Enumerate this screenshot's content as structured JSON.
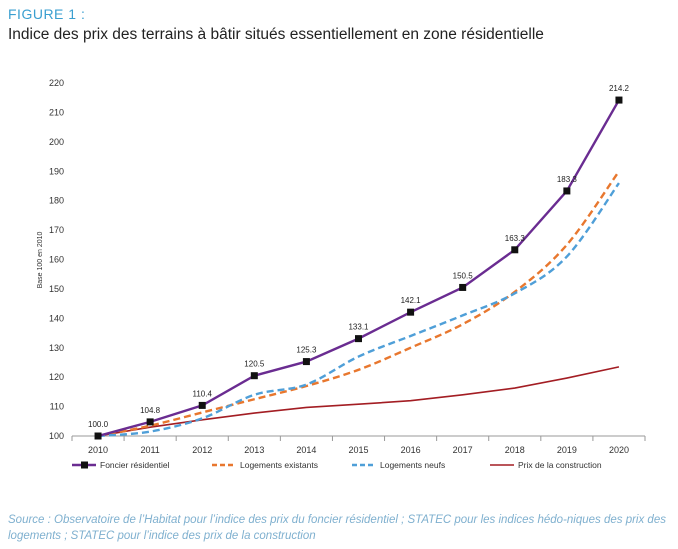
{
  "figure": {
    "label": "FIGURE 1 :",
    "title": "Indice des prix des terrains à bâtir situés essentiellement en zone résidentielle",
    "source": "Source : Observatoire de l’Habitat pour l’indice des prix du foncier résidentiel ; STATEC pour les indices hédo-niques des prix des logements ; STATEC pour l’indice des prix de la construction"
  },
  "chart_data": {
    "type": "line",
    "x": [
      2010,
      2011,
      2012,
      2013,
      2014,
      2015,
      2016,
      2017,
      2018,
      2019,
      2020
    ],
    "ylabel": "Base 100 en 2010",
    "xlabel": "",
    "ylim": [
      100,
      220
    ],
    "yticks": [
      100,
      110,
      120,
      130,
      140,
      150,
      160,
      170,
      180,
      190,
      200,
      210,
      220
    ],
    "legend_position": "bottom",
    "series": [
      {
        "name": "Foncier résidentiel",
        "color": "#6a2c91",
        "style": "solid-markers",
        "values": [
          100.0,
          104.8,
          110.4,
          120.5,
          125.3,
          133.1,
          142.1,
          150.5,
          163.3,
          183.3,
          214.2
        ],
        "labels": [
          "100.0",
          "104.8",
          "110.4",
          "120.5",
          "125.3",
          "133.1",
          "142.1",
          "150.5",
          "163.3",
          "183.3",
          "214.2"
        ]
      },
      {
        "name": "Logements existants",
        "color": "#e8772e",
        "style": "dashed",
        "values": [
          100,
          103.5,
          108,
          112.5,
          117,
          122.5,
          130,
          138,
          149,
          165,
          190
        ]
      },
      {
        "name": "Logements neufs",
        "color": "#4f9fd8",
        "style": "dashed",
        "values": [
          100,
          101.5,
          106,
          114,
          117.5,
          127,
          134,
          141,
          148.5,
          161,
          186
        ]
      },
      {
        "name": "Prix de la construction",
        "color": "#a31d23",
        "style": "solid",
        "values": [
          100,
          103,
          105.5,
          107.8,
          109.7,
          110.8,
          112,
          114,
          116.3,
          119.7,
          123.5
        ]
      }
    ]
  }
}
